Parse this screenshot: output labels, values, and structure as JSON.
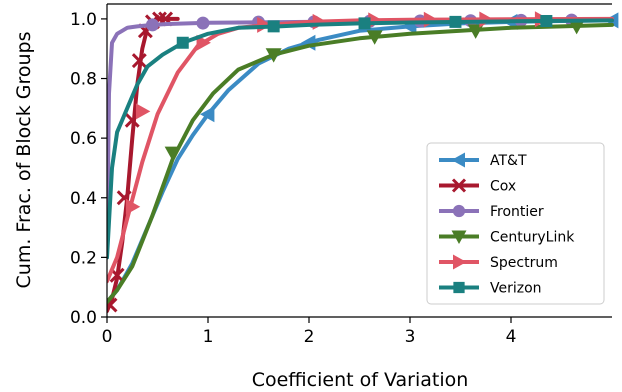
{
  "chart_data": {
    "type": "line",
    "xlabel": "Coefficient of Variation",
    "ylabel": "Cum. Frac. of Block Groups",
    "xlim": [
      0,
      5
    ],
    "ylim": [
      0,
      1.05
    ],
    "xticks": [
      0,
      1,
      2,
      3,
      4
    ],
    "yticks": [
      0.0,
      0.2,
      0.4,
      0.6,
      0.8,
      1.0
    ],
    "ytick_labels": [
      "0.0",
      "0.2",
      "0.4",
      "0.6",
      "0.8",
      "1.0"
    ],
    "grid": false,
    "legend_position": "lower-right",
    "series": [
      {
        "name": "AT&T",
        "color": "#3b8bc4",
        "marker": "triangle-left",
        "x": [
          0,
          0.1,
          0.25,
          0.4,
          0.55,
          0.7,
          0.85,
          1.0,
          1.2,
          1.5,
          1.8,
          2.1,
          2.5,
          3.0,
          3.5,
          4.0,
          4.5,
          5.0
        ],
        "y": [
          0.05,
          0.09,
          0.18,
          0.3,
          0.42,
          0.53,
          0.61,
          0.68,
          0.76,
          0.85,
          0.9,
          0.93,
          0.96,
          0.975,
          0.985,
          0.99,
          0.993,
          0.995
        ],
        "markers_x": [
          1.0,
          2.0,
          3.0,
          4.0,
          5.0
        ],
        "markers_y": [
          0.68,
          0.92,
          0.975,
          0.99,
          0.995
        ]
      },
      {
        "name": "Cox",
        "color": "#a8182e",
        "marker": "x",
        "x": [
          0,
          0.05,
          0.1,
          0.15,
          0.2,
          0.25,
          0.3,
          0.35,
          0.4,
          0.45,
          0.5,
          0.6,
          0.7
        ],
        "y": [
          0.02,
          0.06,
          0.13,
          0.25,
          0.4,
          0.6,
          0.78,
          0.9,
          0.97,
          0.99,
          1.0,
          1.0,
          1.0
        ],
        "markers_x": [
          0.03,
          0.1,
          0.17,
          0.25,
          0.32,
          0.38,
          0.45,
          0.52,
          0.58
        ],
        "markers_y": [
          0.04,
          0.14,
          0.4,
          0.66,
          0.86,
          0.96,
          0.99,
          1.0,
          1.0
        ]
      },
      {
        "name": "Frontier",
        "color": "#8b72b8",
        "marker": "circle",
        "x": [
          0,
          0.02,
          0.05,
          0.1,
          0.15,
          0.2,
          0.3,
          0.45,
          0.6,
          1.0,
          2.0,
          3.0,
          4.0,
          5.0
        ],
        "y": [
          0.2,
          0.75,
          0.92,
          0.95,
          0.96,
          0.97,
          0.975,
          0.98,
          0.983,
          0.987,
          0.99,
          0.993,
          0.995,
          0.996
        ],
        "markers_x": [
          0.45,
          0.95,
          1.5,
          2.05,
          2.6,
          3.1,
          3.6,
          4.1,
          4.6
        ],
        "markers_y": [
          0.98,
          0.986,
          0.989,
          0.99,
          0.992,
          0.993,
          0.994,
          0.995,
          0.996
        ]
      },
      {
        "name": "CenturyLink",
        "color": "#4a7d26",
        "marker": "triangle-down",
        "x": [
          0,
          0.1,
          0.25,
          0.45,
          0.65,
          0.85,
          1.05,
          1.3,
          1.65,
          2.0,
          2.5,
          3.0,
          3.5,
          4.0,
          4.5,
          5.0
        ],
        "y": [
          0.05,
          0.09,
          0.17,
          0.34,
          0.53,
          0.66,
          0.75,
          0.83,
          0.88,
          0.91,
          0.935,
          0.95,
          0.96,
          0.97,
          0.975,
          0.98
        ],
        "markers_x": [
          0.65,
          1.65,
          2.65,
          3.65,
          4.65
        ],
        "markers_y": [
          0.55,
          0.88,
          0.94,
          0.96,
          0.975
        ]
      },
      {
        "name": "Spectrum",
        "color": "#e05565",
        "marker": "triangle-right",
        "x": [
          0,
          0.1,
          0.2,
          0.35,
          0.5,
          0.7,
          0.9,
          1.1,
          1.3,
          1.6,
          2.0,
          2.5,
          3.0,
          3.5,
          4.0,
          5.0
        ],
        "y": [
          0.12,
          0.2,
          0.33,
          0.52,
          0.68,
          0.82,
          0.91,
          0.95,
          0.97,
          0.98,
          0.99,
          0.995,
          0.997,
          0.998,
          0.999,
          1.0
        ],
        "markers_x": [
          0.25,
          0.35,
          0.95,
          1.55,
          2.1,
          2.65,
          3.2,
          3.75,
          4.3
        ],
        "markers_y": [
          0.37,
          0.69,
          0.92,
          0.98,
          0.99,
          0.995,
          0.997,
          0.998,
          0.999
        ]
      },
      {
        "name": "Verizon",
        "color": "#1a8080",
        "marker": "square",
        "x": [
          0,
          0.05,
          0.1,
          0.2,
          0.3,
          0.4,
          0.55,
          0.75,
          1.0,
          1.3,
          1.7,
          2.0,
          2.5,
          3.0,
          4.0,
          5.0
        ],
        "y": [
          0.2,
          0.5,
          0.62,
          0.7,
          0.78,
          0.84,
          0.88,
          0.92,
          0.95,
          0.97,
          0.975,
          0.98,
          0.985,
          0.988,
          0.992,
          0.995
        ],
        "markers_x": [
          0.75,
          1.65,
          2.55,
          3.45,
          4.35
        ],
        "markers_y": [
          0.92,
          0.975,
          0.985,
          0.99,
          0.993
        ]
      }
    ]
  }
}
